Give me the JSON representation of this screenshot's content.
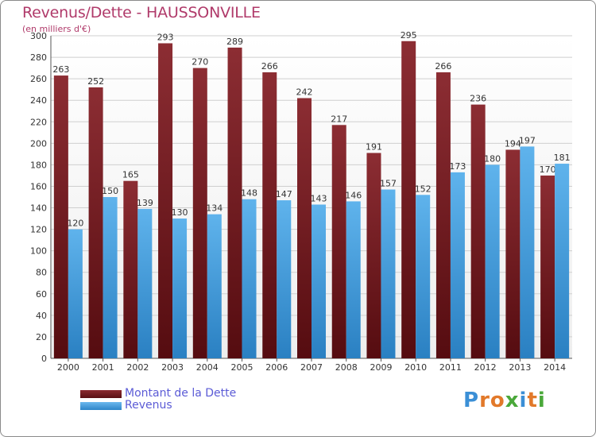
{
  "header": {
    "title": "Revenus/Dette - HAUSSONVILLE",
    "subtitle": "(en milliers d'€)"
  },
  "legend": {
    "items": [
      {
        "label": "Montant de la Dette",
        "color": "#7a1f24"
      },
      {
        "label": "Revenus",
        "color": "#4aa3e0"
      }
    ]
  },
  "logo": {
    "text": "Proxiti",
    "letters": [
      {
        "ch": "P",
        "color": "#3b8fd6"
      },
      {
        "ch": "r",
        "color": "#e2792a"
      },
      {
        "ch": "o",
        "color": "#e2792a"
      },
      {
        "ch": "x",
        "color": "#4aa83a"
      },
      {
        "ch": "i",
        "color": "#3b8fd6"
      },
      {
        "ch": "t",
        "color": "#e2792a"
      },
      {
        "ch": "i",
        "color": "#4aa83a"
      }
    ]
  },
  "chart_data": {
    "type": "bar",
    "title": "Revenus/Dette - HAUSSONVILLE",
    "subtitle": "(en milliers d'€)",
    "xlabel": "",
    "ylabel": "",
    "categories": [
      "2000",
      "2001",
      "2002",
      "2003",
      "2004",
      "2005",
      "2006",
      "2007",
      "2008",
      "2009",
      "2010",
      "2011",
      "2012",
      "2013",
      "2014"
    ],
    "series": [
      {
        "name": "Montant de la Dette",
        "color": "#7a1f24",
        "values": [
          263,
          252,
          165,
          293,
          270,
          289,
          266,
          242,
          217,
          191,
          295,
          266,
          236,
          194,
          170
        ]
      },
      {
        "name": "Revenus",
        "color": "#4aa3e0",
        "values": [
          120,
          150,
          139,
          130,
          134,
          148,
          147,
          143,
          146,
          157,
          152,
          173,
          180,
          197,
          181
        ]
      }
    ],
    "ylim": [
      0,
      300
    ],
    "yticks": [
      0,
      20,
      40,
      60,
      80,
      100,
      120,
      140,
      160,
      180,
      200,
      220,
      240,
      260,
      280,
      300
    ],
    "grid": true,
    "legend_position": "bottom-left"
  }
}
